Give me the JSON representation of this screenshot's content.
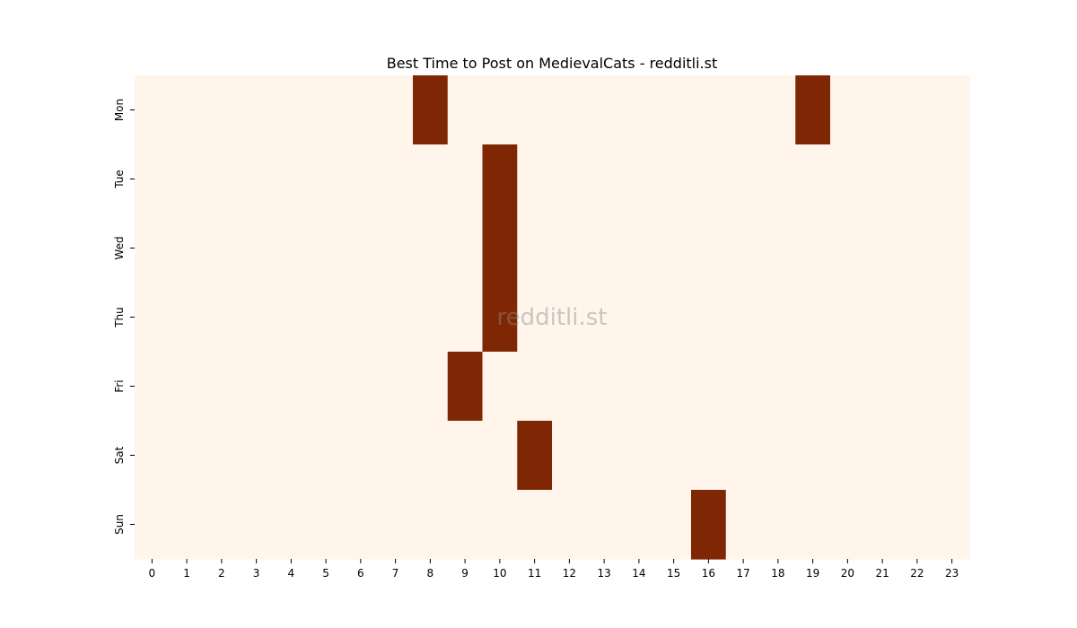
{
  "chart_data": {
    "type": "heatmap",
    "title": "Best Time to Post on MedievalCats - redditli.st",
    "xlabel": "",
    "ylabel": "",
    "x_categories": [
      "0",
      "1",
      "2",
      "3",
      "4",
      "5",
      "6",
      "7",
      "8",
      "9",
      "10",
      "11",
      "12",
      "13",
      "14",
      "15",
      "16",
      "17",
      "18",
      "19",
      "20",
      "21",
      "22",
      "23"
    ],
    "y_categories": [
      "Mon",
      "Tue",
      "Wed",
      "Thu",
      "Fri",
      "Sat",
      "Sun"
    ],
    "values": [
      [
        0,
        0,
        0,
        0,
        0,
        0,
        0,
        0,
        1,
        0,
        0,
        0,
        0,
        0,
        0,
        0,
        0,
        0,
        0,
        1,
        0,
        0,
        0,
        0
      ],
      [
        0,
        0,
        0,
        0,
        0,
        0,
        0,
        0,
        0,
        0,
        1,
        0,
        0,
        0,
        0,
        0,
        0,
        0,
        0,
        0,
        0,
        0,
        0,
        0
      ],
      [
        0,
        0,
        0,
        0,
        0,
        0,
        0,
        0,
        0,
        0,
        1,
        0,
        0,
        0,
        0,
        0,
        0,
        0,
        0,
        0,
        0,
        0,
        0,
        0
      ],
      [
        0,
        0,
        0,
        0,
        0,
        0,
        0,
        0,
        0,
        0,
        1,
        0,
        0,
        0,
        0,
        0,
        0,
        0,
        0,
        0,
        0,
        0,
        0,
        0
      ],
      [
        0,
        0,
        0,
        0,
        0,
        0,
        0,
        0,
        0,
        1,
        0,
        0,
        0,
        0,
        0,
        0,
        0,
        0,
        0,
        0,
        0,
        0,
        0,
        0
      ],
      [
        0,
        0,
        0,
        0,
        0,
        0,
        0,
        0,
        0,
        0,
        0,
        1,
        0,
        0,
        0,
        0,
        0,
        0,
        0,
        0,
        0,
        0,
        0,
        0
      ],
      [
        0,
        0,
        0,
        0,
        0,
        0,
        0,
        0,
        0,
        0,
        0,
        0,
        0,
        0,
        0,
        0,
        1,
        0,
        0,
        0,
        0,
        0,
        0,
        0
      ]
    ],
    "colors": {
      "low": "#fff5eb",
      "high": "#7f2704"
    },
    "grid": false,
    "watermark": "redditli.st"
  }
}
